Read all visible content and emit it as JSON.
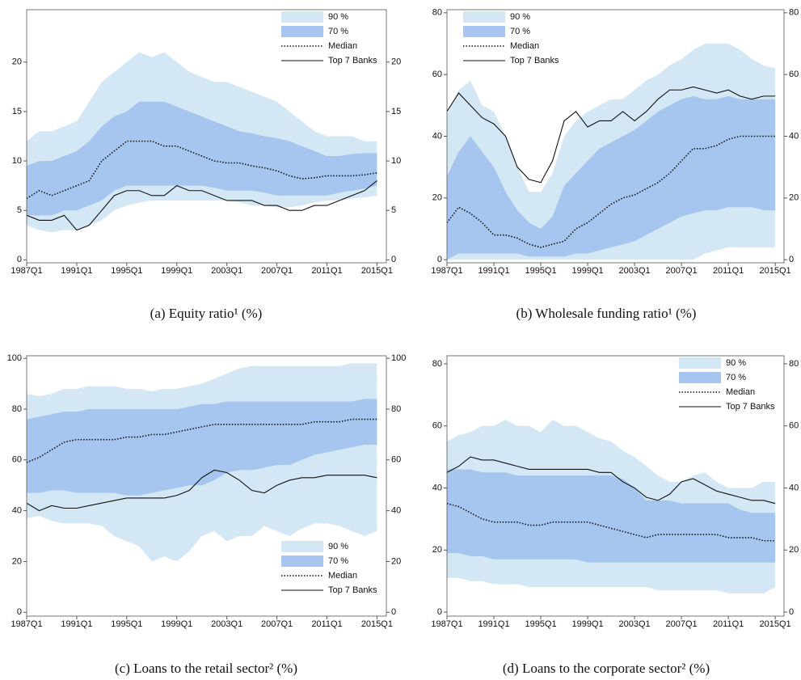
{
  "chart_data": [
    {
      "type": "fan",
      "title": "(a)  Equity ratio¹ (%)",
      "legend": "upper right",
      "x": [
        1987,
        1988,
        1989,
        1990,
        1991,
        1992,
        1993,
        1994,
        1995,
        1996,
        1997,
        1998,
        1999,
        2000,
        2001,
        2002,
        2003,
        2004,
        2005,
        2006,
        2007,
        2008,
        2009,
        2010,
        2011,
        2012,
        2013,
        2014,
        2015
      ],
      "xlim": [
        1987,
        2015.75
      ],
      "xticks": [
        {
          "value": 1987,
          "label": "1987Q1"
        },
        {
          "value": 1991,
          "label": "1991Q1"
        },
        {
          "value": 1995,
          "label": "1995Q1"
        },
        {
          "value": 1999,
          "label": "1999Q1"
        },
        {
          "value": 2003,
          "label": "2003Q1"
        },
        {
          "value": 2007,
          "label": "2007Q1"
        },
        {
          "value": 2011,
          "label": "2011Q1"
        },
        {
          "value": 2015,
          "label": "2015Q1"
        }
      ],
      "ylim": [
        -0.3,
        25.3
      ],
      "yticks": [
        0,
        5,
        10,
        15,
        20
      ],
      "series": [
        {
          "name": "90 %",
          "color": "#d4e7f4",
          "lower": [
            3.5,
            3,
            2.8,
            3,
            3,
            3.5,
            4,
            5,
            5.5,
            5.8,
            6,
            6,
            6,
            6,
            6,
            6,
            6,
            5.8,
            5.5,
            5.5,
            5.3,
            5.3,
            5.5,
            5.8,
            6,
            6,
            6.2,
            6.3,
            6.5
          ],
          "upper": [
            12,
            13,
            13,
            13.5,
            14,
            16,
            18,
            19,
            20,
            21,
            20.5,
            21,
            20,
            19,
            18.5,
            18,
            18,
            17.5,
            17,
            16.5,
            16,
            15,
            14,
            13,
            12.5,
            12.5,
            12.5,
            12,
            12
          ]
        },
        {
          "name": "70 %",
          "color": "#a6c6ef",
          "lower": [
            4.5,
            4.5,
            4.5,
            5,
            5,
            5.5,
            6,
            7,
            7.5,
            7.5,
            7.5,
            7.5,
            7.5,
            7.5,
            7.5,
            7.3,
            7,
            7,
            7,
            6.8,
            6.5,
            6.5,
            6.5,
            6.5,
            6.5,
            6.8,
            7,
            7.2,
            7.5
          ],
          "upper": [
            9.5,
            10,
            10,
            10.5,
            11,
            12,
            13.5,
            14.5,
            15,
            16,
            16,
            16,
            15.5,
            15,
            14.5,
            14,
            13.5,
            13,
            12.8,
            12.5,
            12.3,
            12,
            11.5,
            11,
            10.5,
            10.5,
            10.7,
            10.8,
            10.8
          ]
        },
        {
          "name": "Median",
          "color": "#111111",
          "style": "dotted",
          "values": [
            6.2,
            7,
            6.5,
            7,
            7.5,
            8,
            10,
            11,
            12,
            12,
            12,
            11.5,
            11.5,
            11,
            10.5,
            10,
            9.8,
            9.8,
            9.5,
            9.3,
            9,
            8.5,
            8.2,
            8.3,
            8.5,
            8.5,
            8.5,
            8.6,
            8.8
          ]
        },
        {
          "name": "Top 7 Banks",
          "color": "#111111",
          "style": "solid",
          "values": [
            4.5,
            4,
            4,
            4.5,
            3,
            3.5,
            5,
            6.5,
            7,
            7,
            6.5,
            6.5,
            7.5,
            7,
            7,
            6.5,
            6,
            6,
            6,
            5.5,
            5.5,
            5,
            5,
            5.5,
            5.5,
            6,
            6.5,
            7,
            8
          ]
        }
      ]
    },
    {
      "type": "fan",
      "title": "(b)  Wholesale funding ratio¹ (%)",
      "legend": "upper left",
      "x": [
        1987,
        1988,
        1989,
        1990,
        1991,
        1992,
        1993,
        1994,
        1995,
        1996,
        1997,
        1998,
        1999,
        2000,
        2001,
        2002,
        2003,
        2004,
        2005,
        2006,
        2007,
        2008,
        2009,
        2010,
        2011,
        2012,
        2013,
        2014,
        2015
      ],
      "xlim": [
        1987,
        2015.75
      ],
      "xticks": [
        {
          "value": 1987,
          "label": "1987Q1"
        },
        {
          "value": 1991,
          "label": "1991Q1"
        },
        {
          "value": 1995,
          "label": "1995Q1"
        },
        {
          "value": 1999,
          "label": "1999Q1"
        },
        {
          "value": 2003,
          "label": "2003Q1"
        },
        {
          "value": 2007,
          "label": "2007Q1"
        },
        {
          "value": 2011,
          "label": "2011Q1"
        },
        {
          "value": 2015,
          "label": "2015Q1"
        }
      ],
      "ylim": [
        -1,
        81
      ],
      "yticks": [
        0,
        20,
        40,
        60,
        80
      ],
      "series": [
        {
          "name": "90 %",
          "color": "#d4e7f4",
          "lower": [
            0,
            0,
            0,
            0,
            0,
            0,
            0,
            0,
            0,
            0,
            0,
            0,
            0,
            0,
            0,
            0,
            0,
            0,
            0,
            0,
            0,
            0,
            2,
            3,
            4,
            4,
            4,
            4,
            4
          ],
          "upper": [
            47,
            55,
            58,
            50,
            48,
            40,
            30,
            22,
            22,
            28,
            40,
            45,
            48,
            50,
            52,
            52,
            55,
            58,
            60,
            63,
            65,
            68,
            70,
            70,
            70,
            68,
            65,
            63,
            62
          ]
        },
        {
          "name": "70 %",
          "color": "#a6c6ef",
          "lower": [
            0,
            2,
            2,
            2,
            2,
            2,
            2,
            1,
            1,
            1,
            1,
            2,
            2,
            3,
            4,
            5,
            6,
            8,
            10,
            12,
            14,
            15,
            16,
            16,
            17,
            17,
            17,
            16,
            16
          ],
          "upper": [
            27,
            35,
            40,
            35,
            30,
            22,
            16,
            12,
            10,
            14,
            24,
            28,
            32,
            36,
            38,
            40,
            42,
            45,
            48,
            50,
            52,
            53,
            52,
            52,
            53,
            52,
            52,
            52,
            52
          ]
        },
        {
          "name": "Median",
          "color": "#111111",
          "style": "dotted",
          "values": [
            12,
            17,
            15,
            12,
            8,
            8,
            7,
            5,
            4,
            5,
            6,
            10,
            12,
            15,
            18,
            20,
            21,
            23,
            25,
            28,
            32,
            36,
            36,
            37,
            39,
            40,
            40,
            40,
            40
          ]
        },
        {
          "name": "Top 7 Banks",
          "color": "#111111",
          "style": "solid",
          "values": [
            48,
            54,
            50,
            46,
            44,
            40,
            30,
            26,
            25,
            32,
            45,
            48,
            43,
            45,
            45,
            48,
            45,
            48,
            52,
            55,
            55,
            56,
            55,
            54,
            55,
            53,
            52,
            53,
            53
          ]
        }
      ]
    },
    {
      "type": "fan",
      "title": "(c)  Loans to the retail sector² (%)",
      "legend": "lower right",
      "x": [
        1987,
        1988,
        1989,
        1990,
        1991,
        1992,
        1993,
        1994,
        1995,
        1996,
        1997,
        1998,
        1999,
        2000,
        2001,
        2002,
        2003,
        2004,
        2005,
        2006,
        2007,
        2008,
        2009,
        2010,
        2011,
        2012,
        2013,
        2014,
        2015
      ],
      "xlim": [
        1987,
        2015.75
      ],
      "xticks": [
        {
          "value": 1987,
          "label": "1987Q1"
        },
        {
          "value": 1991,
          "label": "1991Q1"
        },
        {
          "value": 1995,
          "label": "1995Q1"
        },
        {
          "value": 1999,
          "label": "1999Q1"
        },
        {
          "value": 2003,
          "label": "2003Q1"
        },
        {
          "value": 2007,
          "label": "2007Q1"
        },
        {
          "value": 2011,
          "label": "2011Q1"
        },
        {
          "value": 2015,
          "label": "2015Q1"
        }
      ],
      "ylim": [
        -1.5,
        101
      ],
      "yticks": [
        0,
        20,
        40,
        60,
        80,
        100
      ],
      "series": [
        {
          "name": "90 %",
          "color": "#d4e7f4",
          "lower": [
            37,
            38,
            36,
            35,
            35,
            35,
            34,
            30,
            28,
            26,
            20,
            22,
            20,
            24,
            30,
            32,
            28,
            30,
            30,
            34,
            32,
            30,
            33,
            35,
            35,
            34,
            32,
            30,
            32
          ],
          "upper": [
            86,
            85,
            86,
            88,
            88,
            89,
            89,
            89,
            88,
            88,
            87,
            88,
            88,
            89,
            90,
            92,
            94,
            96,
            97,
            97,
            97,
            97,
            97,
            97,
            97,
            97,
            98,
            98,
            98
          ]
        },
        {
          "name": "70 %",
          "color": "#a6c6ef",
          "lower": [
            47,
            47,
            48,
            48,
            47,
            47,
            47,
            47,
            46,
            46,
            47,
            48,
            49,
            50,
            50,
            52,
            55,
            56,
            56,
            57,
            58,
            58,
            60,
            62,
            63,
            64,
            65,
            66,
            66
          ],
          "upper": [
            76,
            77,
            78,
            79,
            79,
            80,
            80,
            80,
            80,
            80,
            80,
            80,
            80,
            81,
            82,
            82,
            83,
            83,
            83,
            83,
            83,
            83,
            83,
            83,
            83,
            83,
            83,
            84,
            84
          ]
        },
        {
          "name": "Median",
          "color": "#111111",
          "style": "dotted",
          "values": [
            59,
            61,
            64,
            67,
            68,
            68,
            68,
            68,
            69,
            69,
            70,
            70,
            71,
            72,
            73,
            74,
            74,
            74,
            74,
            74,
            74,
            74,
            74,
            75,
            75,
            75,
            76,
            76,
            76
          ]
        },
        {
          "name": "Top 7 Banks",
          "color": "#111111",
          "style": "solid",
          "values": [
            43,
            40,
            42,
            41,
            41,
            42,
            43,
            44,
            45,
            45,
            45,
            45,
            46,
            48,
            53,
            56,
            55,
            52,
            48,
            47,
            50,
            52,
            53,
            53,
            54,
            54,
            54,
            54,
            53
          ]
        }
      ]
    },
    {
      "type": "fan",
      "title": "(d)  Loans to the corporate sector² (%)",
      "legend": "upper right",
      "x": [
        1987,
        1988,
        1989,
        1990,
        1991,
        1992,
        1993,
        1994,
        1995,
        1996,
        1997,
        1998,
        1999,
        2000,
        2001,
        2002,
        2003,
        2004,
        2005,
        2006,
        2007,
        2008,
        2009,
        2010,
        2011,
        2012,
        2013,
        2014,
        2015
      ],
      "xlim": [
        1987,
        2015.75
      ],
      "xticks": [
        {
          "value": 1987,
          "label": "1987Q1"
        },
        {
          "value": 1991,
          "label": "1991Q1"
        },
        {
          "value": 1995,
          "label": "1995Q1"
        },
        {
          "value": 1999,
          "label": "1999Q1"
        },
        {
          "value": 2003,
          "label": "2003Q1"
        },
        {
          "value": 2007,
          "label": "2007Q1"
        },
        {
          "value": 2011,
          "label": "2011Q1"
        },
        {
          "value": 2015,
          "label": "2015Q1"
        }
      ],
      "ylim": [
        -1.3,
        82.6
      ],
      "yticks": [
        0,
        20,
        40,
        60,
        80
      ],
      "series": [
        {
          "name": "90 %",
          "color": "#d4e7f4",
          "lower": [
            11,
            11,
            10,
            10,
            9,
            9,
            9,
            8,
            8,
            8,
            8,
            8,
            8,
            8,
            8,
            8,
            8,
            8,
            7,
            7,
            7,
            7,
            7,
            7,
            6,
            6,
            6,
            6,
            8
          ],
          "upper": [
            55,
            57,
            58,
            60,
            60,
            62,
            60,
            60,
            58,
            62,
            60,
            60,
            58,
            56,
            55,
            52,
            50,
            47,
            44,
            42,
            42,
            44,
            45,
            42,
            40,
            40,
            40,
            42,
            42
          ]
        },
        {
          "name": "70 %",
          "color": "#a6c6ef",
          "lower": [
            19,
            19,
            18,
            18,
            17,
            17,
            17,
            17,
            17,
            17,
            17,
            17,
            16,
            16,
            16,
            16,
            16,
            16,
            16,
            16,
            16,
            16,
            16,
            16,
            16,
            16,
            16,
            16,
            16
          ],
          "upper": [
            46,
            46,
            46,
            45,
            45,
            45,
            44,
            44,
            44,
            44,
            44,
            44,
            44,
            44,
            44,
            43,
            40,
            36,
            36,
            36,
            35,
            35,
            35,
            35,
            35,
            33,
            32,
            32,
            32
          ]
        },
        {
          "name": "Median",
          "color": "#111111",
          "style": "dotted",
          "values": [
            35,
            34,
            32,
            30,
            29,
            29,
            29,
            28,
            28,
            29,
            29,
            29,
            29,
            28,
            27,
            26,
            25,
            24,
            25,
            25,
            25,
            25,
            25,
            25,
            24,
            24,
            24,
            23,
            23
          ]
        },
        {
          "name": "Top 7 Banks",
          "color": "#111111",
          "style": "solid",
          "values": [
            45,
            47,
            50,
            49,
            49,
            48,
            47,
            46,
            46,
            46,
            46,
            46,
            46,
            45,
            45,
            42,
            40,
            37,
            36,
            38,
            42,
            43,
            41,
            39,
            38,
            37,
            36,
            36,
            35
          ]
        }
      ]
    }
  ]
}
